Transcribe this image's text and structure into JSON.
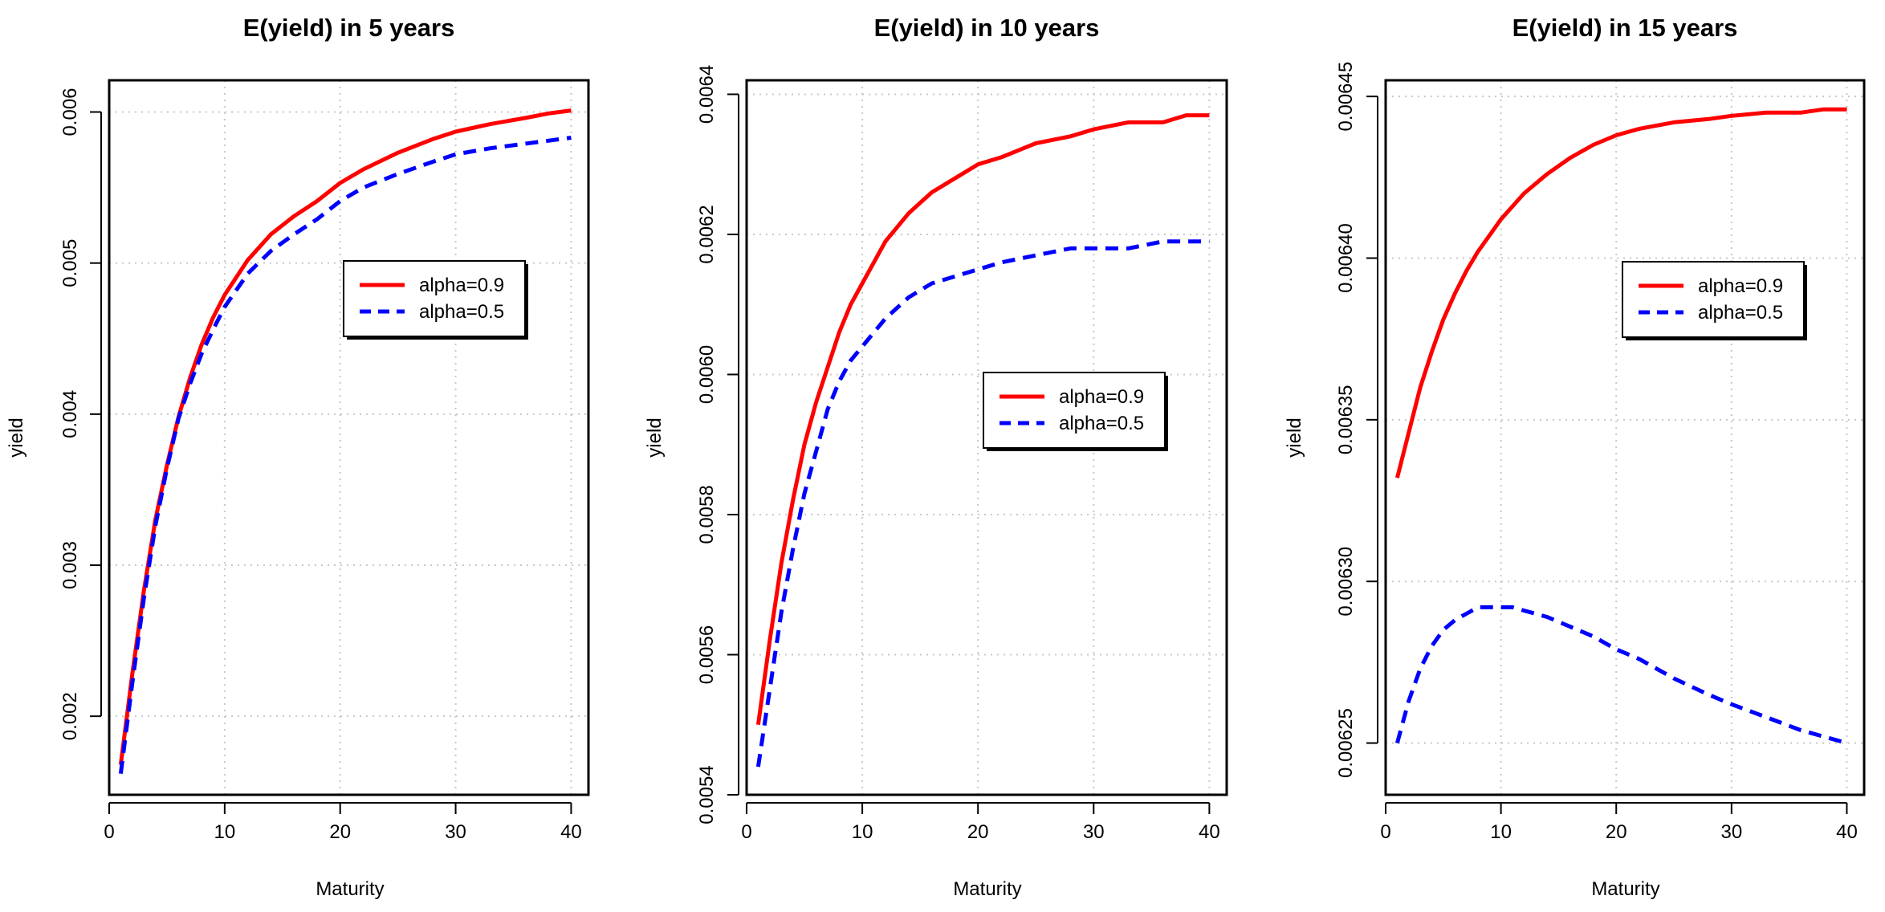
{
  "chart_data": [
    {
      "type": "line",
      "title": "E(yield) in 5 years",
      "xlabel": "Maturity",
      "ylabel": "yield",
      "xlim": [
        0,
        41.5
      ],
      "ylim": [
        0.00148,
        0.00621
      ],
      "xticks": [
        0,
        10,
        20,
        30,
        40
      ],
      "xtick_labels": [
        "0",
        "10",
        "20",
        "30",
        "40"
      ],
      "yticks": [
        0.002,
        0.003,
        0.004,
        0.005,
        0.006
      ],
      "ytick_labels": [
        "0.002",
        "0.003",
        "0.004",
        "0.005",
        "0.006"
      ],
      "grid": true,
      "legend_position": "upper-right",
      "series": [
        {
          "name": "alpha=0.9",
          "color": "#ff0000",
          "style": "solid",
          "x": [
            1,
            2,
            3,
            4,
            5,
            6,
            7,
            8,
            9,
            10,
            12,
            14,
            16,
            18,
            20,
            22,
            25,
            28,
            30,
            33,
            36,
            38,
            40
          ],
          "values": [
            0.00168,
            0.00228,
            0.00283,
            0.0033,
            0.00366,
            0.00398,
            0.00424,
            0.00446,
            0.00464,
            0.00479,
            0.00502,
            0.00519,
            0.00531,
            0.00541,
            0.00553,
            0.00562,
            0.00573,
            0.00582,
            0.00587,
            0.00592,
            0.00596,
            0.00599,
            0.00601
          ]
        },
        {
          "name": "alpha=0.5",
          "color": "#0000ff",
          "style": "dashed",
          "x": [
            1,
            2,
            3,
            4,
            5,
            6,
            7,
            8,
            9,
            10,
            12,
            14,
            16,
            18,
            20,
            22,
            25,
            28,
            30,
            33,
            36,
            38,
            40
          ],
          "values": [
            0.00162,
            0.00222,
            0.00278,
            0.00326,
            0.00364,
            0.00397,
            0.0042,
            0.0044,
            0.00456,
            0.00471,
            0.00493,
            0.00508,
            0.00519,
            0.00529,
            0.00541,
            0.0055,
            0.00559,
            0.00567,
            0.00572,
            0.00576,
            0.00579,
            0.00581,
            0.00583
          ]
        }
      ]
    },
    {
      "type": "line",
      "title": "E(yield) in 10 years",
      "xlabel": "Maturity",
      "ylabel": "yield",
      "xlim": [
        0,
        41.5
      ],
      "ylim": [
        0.0054,
        0.00642
      ],
      "xticks": [
        0,
        10,
        20,
        30,
        40
      ],
      "xtick_labels": [
        "0",
        "10",
        "20",
        "30",
        "40"
      ],
      "yticks": [
        0.0054,
        0.0056,
        0.0058,
        0.006,
        0.0062,
        0.0064
      ],
      "ytick_labels": [
        "0.0054",
        "0.0056",
        "0.0058",
        "0.0060",
        "0.0062",
        "0.0064"
      ],
      "grid": true,
      "legend_position": "center-right",
      "series": [
        {
          "name": "alpha=0.9",
          "color": "#ff0000",
          "style": "solid",
          "x": [
            1,
            2,
            3,
            4,
            5,
            6,
            7,
            8,
            9,
            10,
            12,
            14,
            16,
            18,
            20,
            22,
            25,
            28,
            30,
            33,
            36,
            38,
            40
          ],
          "values": [
            0.0055,
            0.00562,
            0.00573,
            0.00582,
            0.0059,
            0.00596,
            0.00601,
            0.00606,
            0.0061,
            0.00613,
            0.00619,
            0.00623,
            0.00626,
            0.00628,
            0.0063,
            0.00631,
            0.00633,
            0.00634,
            0.00635,
            0.00636,
            0.00636,
            0.00637,
            0.00637
          ]
        },
        {
          "name": "alpha=0.5",
          "color": "#0000ff",
          "style": "dashed",
          "x": [
            1,
            2,
            3,
            4,
            5,
            6,
            7,
            8,
            9,
            10,
            12,
            14,
            16,
            18,
            20,
            22,
            25,
            28,
            30,
            33,
            36,
            38,
            40
          ],
          "values": [
            0.00544,
            0.00555,
            0.00566,
            0.00575,
            0.00583,
            0.00589,
            0.00595,
            0.00599,
            0.00602,
            0.00604,
            0.00608,
            0.00611,
            0.00613,
            0.00614,
            0.00615,
            0.00616,
            0.00617,
            0.00618,
            0.00618,
            0.00618,
            0.00619,
            0.00619,
            0.00619
          ]
        }
      ]
    },
    {
      "type": "line",
      "title": "E(yield) in 15 years",
      "xlabel": "Maturity",
      "ylabel": "yield",
      "xlim": [
        0,
        41.5
      ],
      "ylim": [
        0.006234,
        0.006455
      ],
      "xticks": [
        0,
        10,
        20,
        30,
        40
      ],
      "xtick_labels": [
        "0",
        "10",
        "20",
        "30",
        "40"
      ],
      "yticks": [
        0.00625,
        0.0063,
        0.00635,
        0.0064,
        0.00645
      ],
      "ytick_labels": [
        "0.00625",
        "0.00630",
        "0.00635",
        "0.00640",
        "0.00645"
      ],
      "grid": true,
      "legend_position": "upper-right",
      "series": [
        {
          "name": "alpha=0.9",
          "color": "#ff0000",
          "style": "solid",
          "x": [
            1,
            2,
            3,
            4,
            5,
            6,
            7,
            8,
            9,
            10,
            12,
            14,
            16,
            18,
            20,
            22,
            25,
            28,
            30,
            33,
            36,
            38,
            40
          ],
          "values": [
            0.006332,
            0.006346,
            0.00636,
            0.006371,
            0.006381,
            0.006389,
            0.006396,
            0.006402,
            0.006407,
            0.006412,
            0.00642,
            0.006426,
            0.006431,
            0.006435,
            0.006438,
            0.00644,
            0.006442,
            0.006443,
            0.006444,
            0.006445,
            0.006445,
            0.006446,
            0.006446
          ]
        },
        {
          "name": "alpha=0.5",
          "color": "#0000ff",
          "style": "dashed",
          "x": [
            1,
            2,
            3,
            4,
            5,
            6,
            7,
            8,
            9,
            10,
            11,
            12,
            14,
            16,
            18,
            20,
            22,
            25,
            28,
            30,
            33,
            36,
            38,
            40
          ],
          "values": [
            0.00625,
            0.006263,
            0.006273,
            0.00628,
            0.006285,
            0.006288,
            0.00629,
            0.006292,
            0.006292,
            0.006292,
            0.006292,
            0.006291,
            0.006289,
            0.006286,
            0.006283,
            0.006279,
            0.006276,
            0.00627,
            0.006265,
            0.006262,
            0.006258,
            0.006254,
            0.006252,
            0.00625
          ]
        }
      ]
    }
  ]
}
